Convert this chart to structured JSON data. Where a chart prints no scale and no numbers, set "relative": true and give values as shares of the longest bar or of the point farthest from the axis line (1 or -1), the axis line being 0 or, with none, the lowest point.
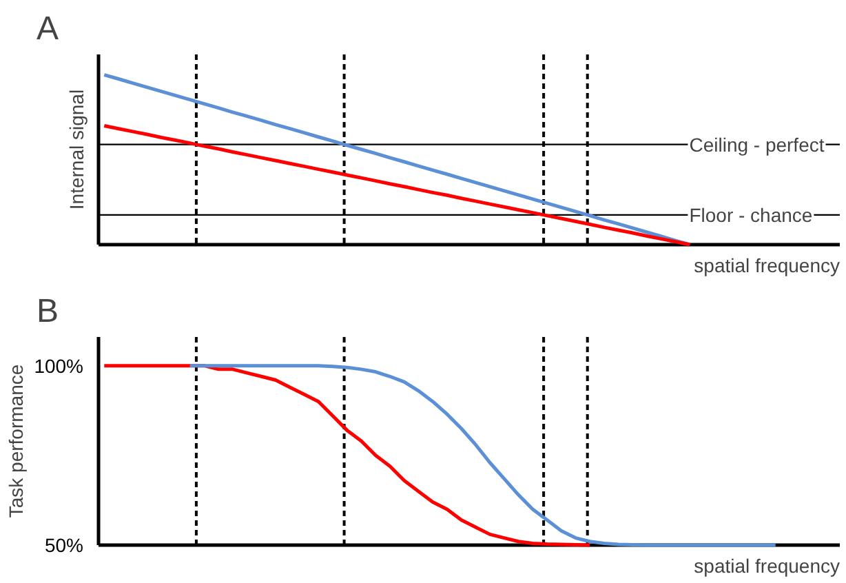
{
  "chart_data": [
    {
      "type": "line",
      "title": "A",
      "ylabel": "Internal signal",
      "xlabel": "spatial frequency",
      "relative": true,
      "tick_labels": false,
      "grid": false,
      "marker": "none",
      "line_style": "solid",
      "categories": [
        null,
        null,
        null,
        null,
        null,
        null,
        null,
        null,
        null,
        null,
        null,
        null,
        null,
        null,
        null,
        null,
        null,
        null,
        null,
        null,
        null,
        null,
        null,
        null,
        null,
        null,
        null,
        null,
        null,
        null,
        null,
        null,
        null,
        null,
        null,
        null,
        null,
        null,
        null,
        null,
        null,
        null,
        null,
        null,
        null,
        null,
        null,
        null,
        null,
        null,
        null,
        null
      ],
      "series": [
        {
          "color": "#5b8fd6",
          "values": [
            1,
            0.976,
            0.951,
            0.927,
            0.902,
            0.878,
            0.854,
            0.829,
            0.805,
            0.78,
            0.756,
            0.732,
            0.707,
            0.683,
            0.659,
            0.634,
            0.61,
            0.585,
            0.561,
            0.537,
            0.512,
            0.488,
            0.463,
            0.439,
            0.415,
            0.39,
            0.366,
            0.341,
            0.317,
            0.293,
            0.268,
            0.244,
            0.22,
            0.195,
            0.171,
            0.146,
            0.122,
            0.098,
            0.073,
            0.049,
            0.024,
            0,
            null,
            null,
            null,
            null,
            null,
            null,
            null,
            null,
            null,
            null
          ]
        },
        {
          "color": "#ff0000",
          "values": [
            0.7,
            0.683,
            0.666,
            0.649,
            0.631,
            0.615,
            0.598,
            0.58,
            0.564,
            0.546,
            0.529,
            0.512,
            0.495,
            0.478,
            0.461,
            0.444,
            0.427,
            0.41,
            0.393,
            0.376,
            0.358,
            0.342,
            0.324,
            0.307,
            0.291,
            0.273,
            0.256,
            0.239,
            0.222,
            0.205,
            0.188,
            0.171,
            0.154,
            0.137,
            0.12,
            0.102,
            0.085,
            0.069,
            0.051,
            0.034,
            0.017,
            0,
            null,
            null,
            null,
            null,
            null,
            null,
            null,
            null,
            null,
            null
          ]
        }
      ],
      "ref_lines": [
        {
          "axis": "y",
          "value": 0.59,
          "label": "Ceiling - perfect",
          "color": "#000000",
          "line_style": "solid"
        },
        {
          "axis": "y",
          "value": 0.175,
          "label": "Floor - chance",
          "color": "#000000",
          "line_style": "solid"
        }
      ]
    },
    {
      "type": "line",
      "title": "B",
      "ylabel": "Task performance",
      "xlabel": "spatial frequency",
      "ylim": [
        50,
        108
      ],
      "yticks": [
        {
          "value": 100,
          "label": "100%"
        },
        {
          "value": 50,
          "label": "50%"
        }
      ],
      "tick_labels": "y",
      "grid": false,
      "marker": "none",
      "line_style": "solid",
      "categories": [
        null,
        null,
        null,
        null,
        null,
        null,
        null,
        null,
        null,
        null,
        null,
        null,
        null,
        null,
        null,
        null,
        null,
        null,
        null,
        null,
        null,
        null,
        null,
        null,
        null,
        null,
        null,
        null,
        null,
        null,
        null,
        null,
        null,
        null,
        null,
        null,
        null,
        null,
        null,
        null,
        null,
        null,
        null,
        null,
        null,
        null,
        null,
        null,
        null,
        null,
        null,
        null
      ],
      "series": [
        {
          "color": "#ff0000",
          "values": [
            100,
            100,
            100,
            100,
            100,
            100,
            100,
            100,
            99,
            99,
            98,
            97,
            96,
            94,
            92,
            90,
            86,
            82,
            79,
            75,
            72,
            68,
            65,
            62,
            60,
            57,
            55,
            53,
            52,
            51,
            50.5,
            50.3,
            50.2,
            50.1,
            50,
            null,
            null,
            null,
            null,
            null,
            null,
            null,
            null,
            null,
            null,
            null,
            null,
            null,
            null,
            null,
            null,
            null
          ]
        },
        {
          "color": "#5b8fd6",
          "values": [
            null,
            null,
            null,
            null,
            null,
            null,
            100,
            100,
            100,
            100,
            100,
            100,
            100,
            100,
            100,
            100,
            99.8,
            99.5,
            99,
            98.3,
            97,
            95.5,
            93,
            90,
            86.5,
            82.5,
            78,
            73,
            68.5,
            64,
            60,
            57,
            54,
            52,
            51,
            50.5,
            50.2,
            50.1,
            50,
            50,
            50,
            50,
            50,
            50,
            50,
            50,
            50,
            50,
            null,
            null,
            null,
            null
          ]
        }
      ]
    }
  ]
}
